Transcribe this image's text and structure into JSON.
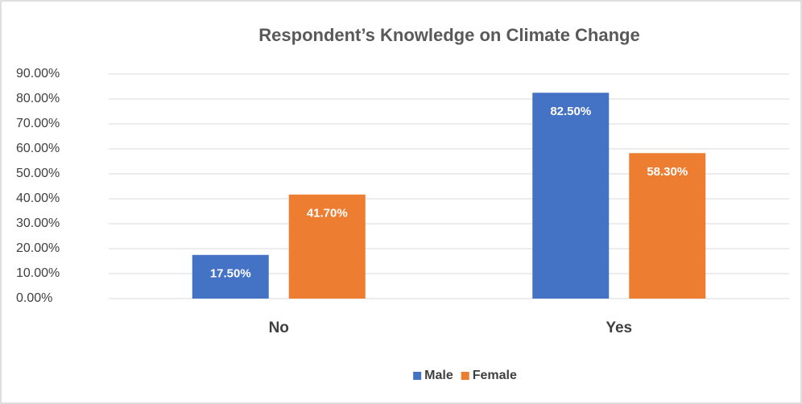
{
  "chart_data": {
    "type": "bar",
    "title": "Respondent’s Knowledge on Climate Change",
    "categories": [
      "No",
      "Yes"
    ],
    "series": [
      {
        "name": "Male",
        "color": "#4472c4",
        "values": [
          17.5,
          82.5
        ],
        "value_labels": [
          "17.50%",
          "82.50%"
        ]
      },
      {
        "name": "Female",
        "color": "#ed7d31",
        "values": [
          41.7,
          58.3
        ],
        "value_labels": [
          "41.70%",
          "58.30%"
        ]
      }
    ],
    "ylim": [
      0,
      90
    ],
    "yticks": [
      {
        "value": 0,
        "label": "0.00%"
      },
      {
        "value": 10,
        "label": "10.00%"
      },
      {
        "value": 20,
        "label": "20.00%"
      },
      {
        "value": 30,
        "label": "30.00%"
      },
      {
        "value": 40,
        "label": "40.00%"
      },
      {
        "value": 50,
        "label": "50.00%"
      },
      {
        "value": 60,
        "label": "60.00%"
      },
      {
        "value": 70,
        "label": "70.00%"
      },
      {
        "value": 80,
        "label": "80.00%"
      },
      {
        "value": 90,
        "label": "90.00%"
      }
    ],
    "grid": true,
    "legend": "bottom"
  }
}
